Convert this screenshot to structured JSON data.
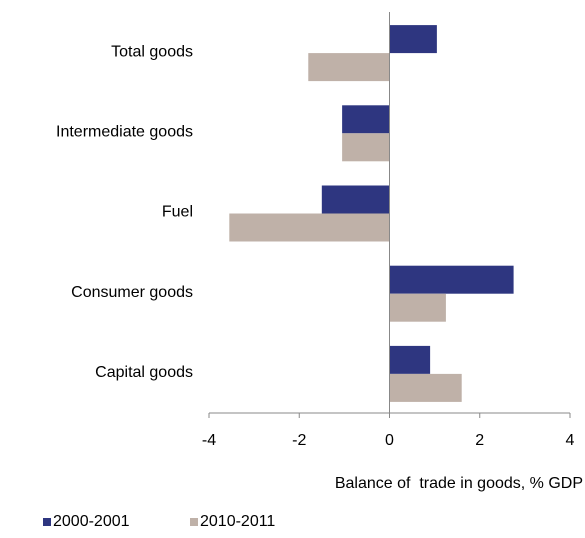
{
  "chart_data": {
    "type": "hbar",
    "categories": [
      "Total goods",
      "Intermediate goods",
      "Fuel",
      "Consumer goods",
      "Capital goods"
    ],
    "series": [
      {
        "name": "2000-2001",
        "color": "#2e3680",
        "values": [
          1.05,
          -1.05,
          -1.5,
          2.75,
          0.9
        ]
      },
      {
        "name": "2010-2011",
        "color": "#bfb1a8",
        "values": [
          -1.8,
          -1.05,
          -3.55,
          1.25,
          1.6
        ]
      }
    ],
    "xlim": [
      -4,
      4
    ],
    "xticks": [
      -4,
      -2,
      0,
      2,
      4
    ],
    "xlabel": "Balance of  trade in goods, % GDP"
  }
}
